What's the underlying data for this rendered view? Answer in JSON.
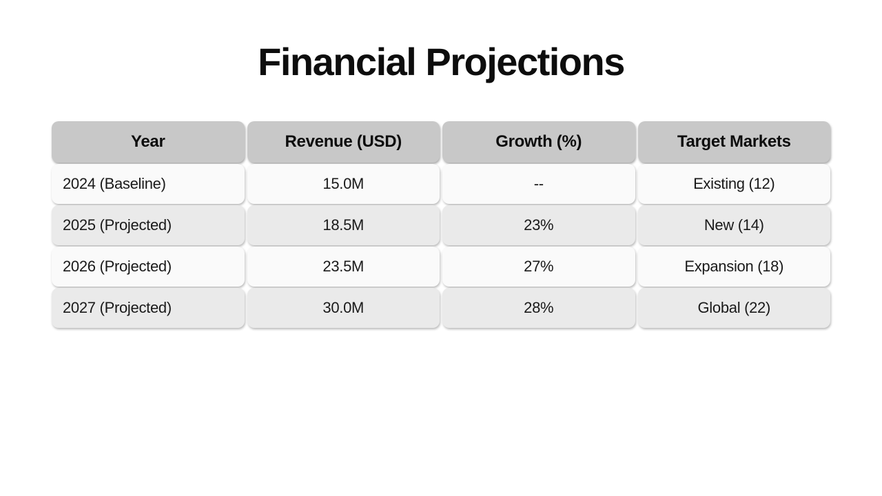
{
  "page": {
    "title": "Financial Projections",
    "background_color": "#ffffff"
  },
  "chart_data": {
    "type": "table",
    "title": "Financial Projections",
    "columns": [
      "Year",
      "Revenue (USD)",
      "Growth (%)",
      "Target Markets"
    ],
    "rows": [
      [
        "2024 (Baseline)",
        "15.0M",
        "--",
        "Existing (12)"
      ],
      [
        "2025 (Projected)",
        "18.5M",
        "23%",
        "New (14)"
      ],
      [
        "2026 (Projected)",
        "23.5M",
        "27%",
        "Expansion (18)"
      ],
      [
        "2027 (Projected)",
        "30.0M",
        "28%",
        "Global (22)"
      ]
    ],
    "layout": {
      "header_row": true,
      "alternating_row_shading": true,
      "first_column_alignment": "left",
      "other_columns_alignment": "center"
    },
    "colors": {
      "header_bg": "#c8c8c8",
      "row_odd_bg": "#fafafa",
      "row_even_bg": "#eaeaea",
      "text": "#0d0d0d",
      "page_bg": "#ffffff"
    }
  }
}
